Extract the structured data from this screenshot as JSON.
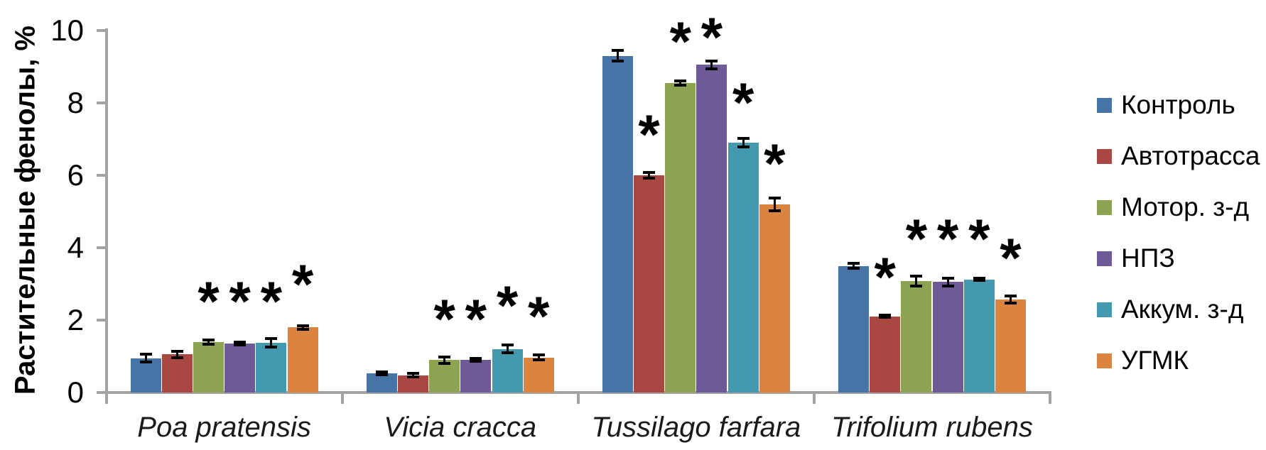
{
  "chart_data": {
    "type": "bar",
    "title": "",
    "xlabel": "",
    "ylabel": "Растительные фенолы, %",
    "ylim": [
      0,
      10
    ],
    "yticks": [
      0,
      2,
      4,
      6,
      8,
      10
    ],
    "ytick_labels": [
      "0",
      "2",
      "4",
      "6",
      "8",
      "10"
    ],
    "grid": false,
    "legend_position": "right",
    "axis_color": "#a3a3a3",
    "error_bar_color": "#000000",
    "significance_glyph": "*",
    "categories": [
      "Poa pratensis",
      "Vicia cracca",
      "Tussilago farfara",
      "Trifolium rubens"
    ],
    "series": [
      {
        "name": "Контроль",
        "color": "#4674a7",
        "values": [
          0.95,
          0.53,
          9.3,
          3.5
        ],
        "errors": [
          0.1,
          0.04,
          0.15,
          0.06
        ]
      },
      {
        "name": "Автотрасса",
        "color": "#a94743",
        "values": [
          1.05,
          0.48,
          6.0,
          2.1
        ],
        "errors": [
          0.08,
          0.05,
          0.08,
          0.03
        ]
      },
      {
        "name": "Мотор. з-д",
        "color": "#8ca351",
        "values": [
          1.4,
          0.9,
          8.55,
          3.08
        ],
        "errors": [
          0.06,
          0.09,
          0.05,
          0.13
        ]
      },
      {
        "name": "НПЗ",
        "color": "#6d5a96",
        "values": [
          1.35,
          0.9,
          9.05,
          3.05
        ],
        "errors": [
          0.04,
          0.04,
          0.1,
          0.1
        ]
      },
      {
        "name": "Аккум. з-д",
        "color": "#4399ae",
        "values": [
          1.38,
          1.2,
          6.9,
          3.12
        ],
        "errors": [
          0.12,
          0.11,
          0.12,
          0.03
        ]
      },
      {
        "name": "УГМК",
        "color": "#da8440",
        "values": [
          1.8,
          0.97,
          5.2,
          2.57
        ],
        "errors": [
          0.05,
          0.06,
          0.18,
          0.09
        ]
      }
    ],
    "significance_marks": [
      {
        "category_index": 0,
        "series_index": 2,
        "y": 2.77
      },
      {
        "category_index": 0,
        "series_index": 3,
        "y": 2.77
      },
      {
        "category_index": 0,
        "series_index": 4,
        "y": 2.77
      },
      {
        "category_index": 0,
        "series_index": 5,
        "y": 3.24
      },
      {
        "category_index": 1,
        "series_index": 2,
        "y": 2.28
      },
      {
        "category_index": 1,
        "series_index": 3,
        "y": 2.28
      },
      {
        "category_index": 1,
        "series_index": 4,
        "y": 2.65
      },
      {
        "category_index": 1,
        "series_index": 5,
        "y": 2.35
      },
      {
        "category_index": 2,
        "series_index": 1,
        "y": 7.37
      },
      {
        "category_index": 2,
        "series_index": 2,
        "y": 9.95
      },
      {
        "category_index": 2,
        "series_index": 3,
        "y": 10.05
      },
      {
        "category_index": 2,
        "series_index": 4,
        "y": 8.25
      },
      {
        "category_index": 2,
        "series_index": 5,
        "y": 6.57
      },
      {
        "category_index": 3,
        "series_index": 1,
        "y": 3.44
      },
      {
        "category_index": 3,
        "series_index": 2,
        "y": 4.5
      },
      {
        "category_index": 3,
        "series_index": 3,
        "y": 4.5
      },
      {
        "category_index": 3,
        "series_index": 4,
        "y": 4.5
      },
      {
        "category_index": 3,
        "series_index": 5,
        "y": 3.96
      }
    ]
  },
  "legend": {
    "items": [
      {
        "label": "Контроль",
        "color": "#4674a7"
      },
      {
        "label": "Автотрасса",
        "color": "#a94743"
      },
      {
        "label": "Мотор. з-д",
        "color": "#8ca351"
      },
      {
        "label": "НПЗ",
        "color": "#6d5a96"
      },
      {
        "label": "Аккум. з-д",
        "color": "#4399ae"
      },
      {
        "label": "УГМК",
        "color": "#da8440"
      }
    ]
  }
}
